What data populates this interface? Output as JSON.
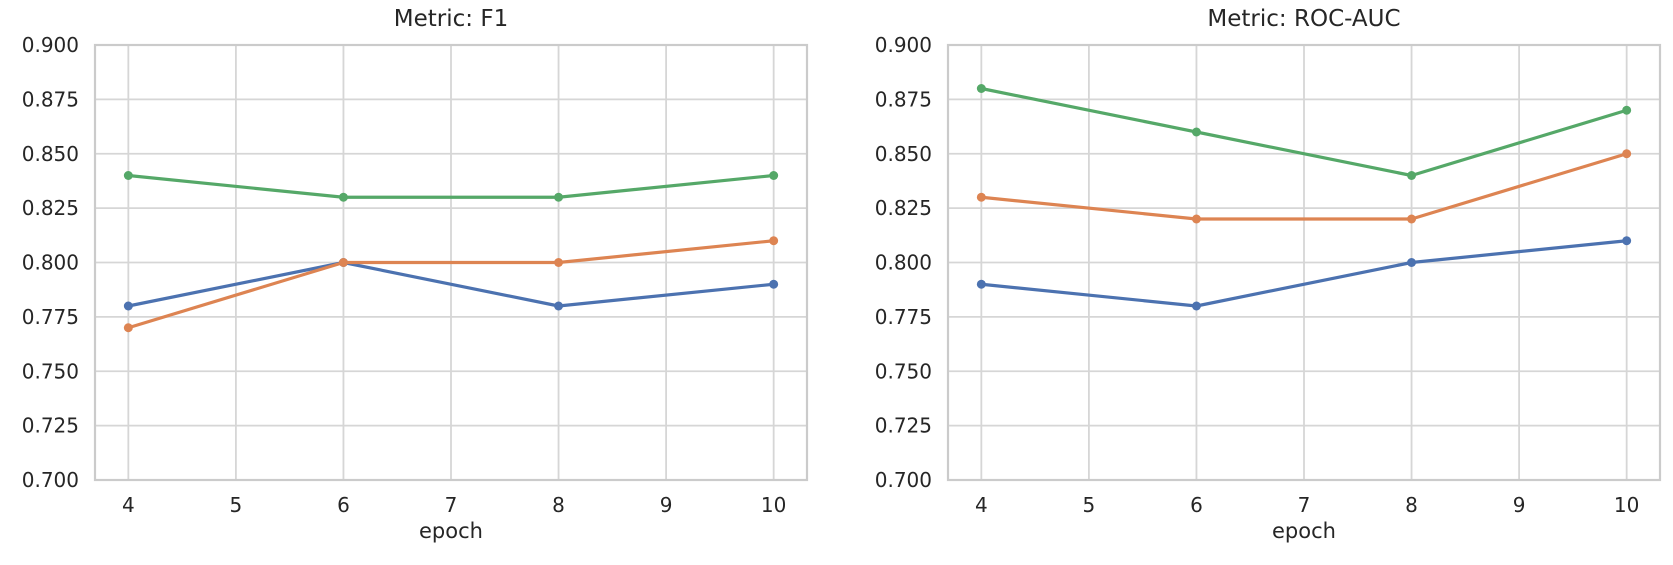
{
  "colors": {
    "background": "#ffffff",
    "grid": "#d6d6d6",
    "spine": "#cbcbcb",
    "text": "#262626"
  },
  "chart_data": [
    {
      "type": "line",
      "title": "Metric: F1",
      "xlabel": "epoch",
      "ylabel": "",
      "x": [
        4,
        6,
        8,
        10
      ],
      "xticks": [
        4,
        5,
        6,
        7,
        8,
        9,
        10
      ],
      "xticklabels": [
        "4",
        "5",
        "6",
        "7",
        "8",
        "9",
        "10"
      ],
      "xlim": [
        3.69,
        10.31
      ],
      "yticks": [
        0.7,
        0.725,
        0.75,
        0.775,
        0.8,
        0.825,
        0.85,
        0.875,
        0.9
      ],
      "yticklabels": [
        "0.700",
        "0.725",
        "0.750",
        "0.775",
        "0.800",
        "0.825",
        "0.850",
        "0.875",
        "0.900"
      ],
      "ylim": [
        0.7,
        0.9
      ],
      "grid": true,
      "legend": "none",
      "series": [
        {
          "name": "blue",
          "color": "#4C72B0",
          "values": [
            0.78,
            0.8,
            0.78,
            0.79
          ]
        },
        {
          "name": "orange",
          "color": "#DD8452",
          "values": [
            0.77,
            0.8,
            0.8,
            0.81
          ]
        },
        {
          "name": "green",
          "color": "#55A868",
          "values": [
            0.84,
            0.83,
            0.83,
            0.84
          ]
        }
      ]
    },
    {
      "type": "line",
      "title": "Metric: ROC-AUC",
      "xlabel": "epoch",
      "ylabel": "",
      "x": [
        4,
        6,
        8,
        10
      ],
      "xticks": [
        4,
        5,
        6,
        7,
        8,
        9,
        10
      ],
      "xticklabels": [
        "4",
        "5",
        "6",
        "7",
        "8",
        "9",
        "10"
      ],
      "xlim": [
        3.69,
        10.31
      ],
      "yticks": [
        0.7,
        0.725,
        0.75,
        0.775,
        0.8,
        0.825,
        0.85,
        0.875,
        0.9
      ],
      "yticklabels": [
        "0.700",
        "0.725",
        "0.750",
        "0.775",
        "0.800",
        "0.825",
        "0.850",
        "0.875",
        "0.900"
      ],
      "ylim": [
        0.7,
        0.9
      ],
      "grid": true,
      "legend": "none",
      "series": [
        {
          "name": "blue",
          "color": "#4C72B0",
          "values": [
            0.79,
            0.78,
            0.8,
            0.81
          ]
        },
        {
          "name": "orange",
          "color": "#DD8452",
          "values": [
            0.83,
            0.82,
            0.82,
            0.85
          ]
        },
        {
          "name": "green",
          "color": "#55A868",
          "values": [
            0.88,
            0.86,
            0.84,
            0.87
          ]
        }
      ]
    }
  ]
}
